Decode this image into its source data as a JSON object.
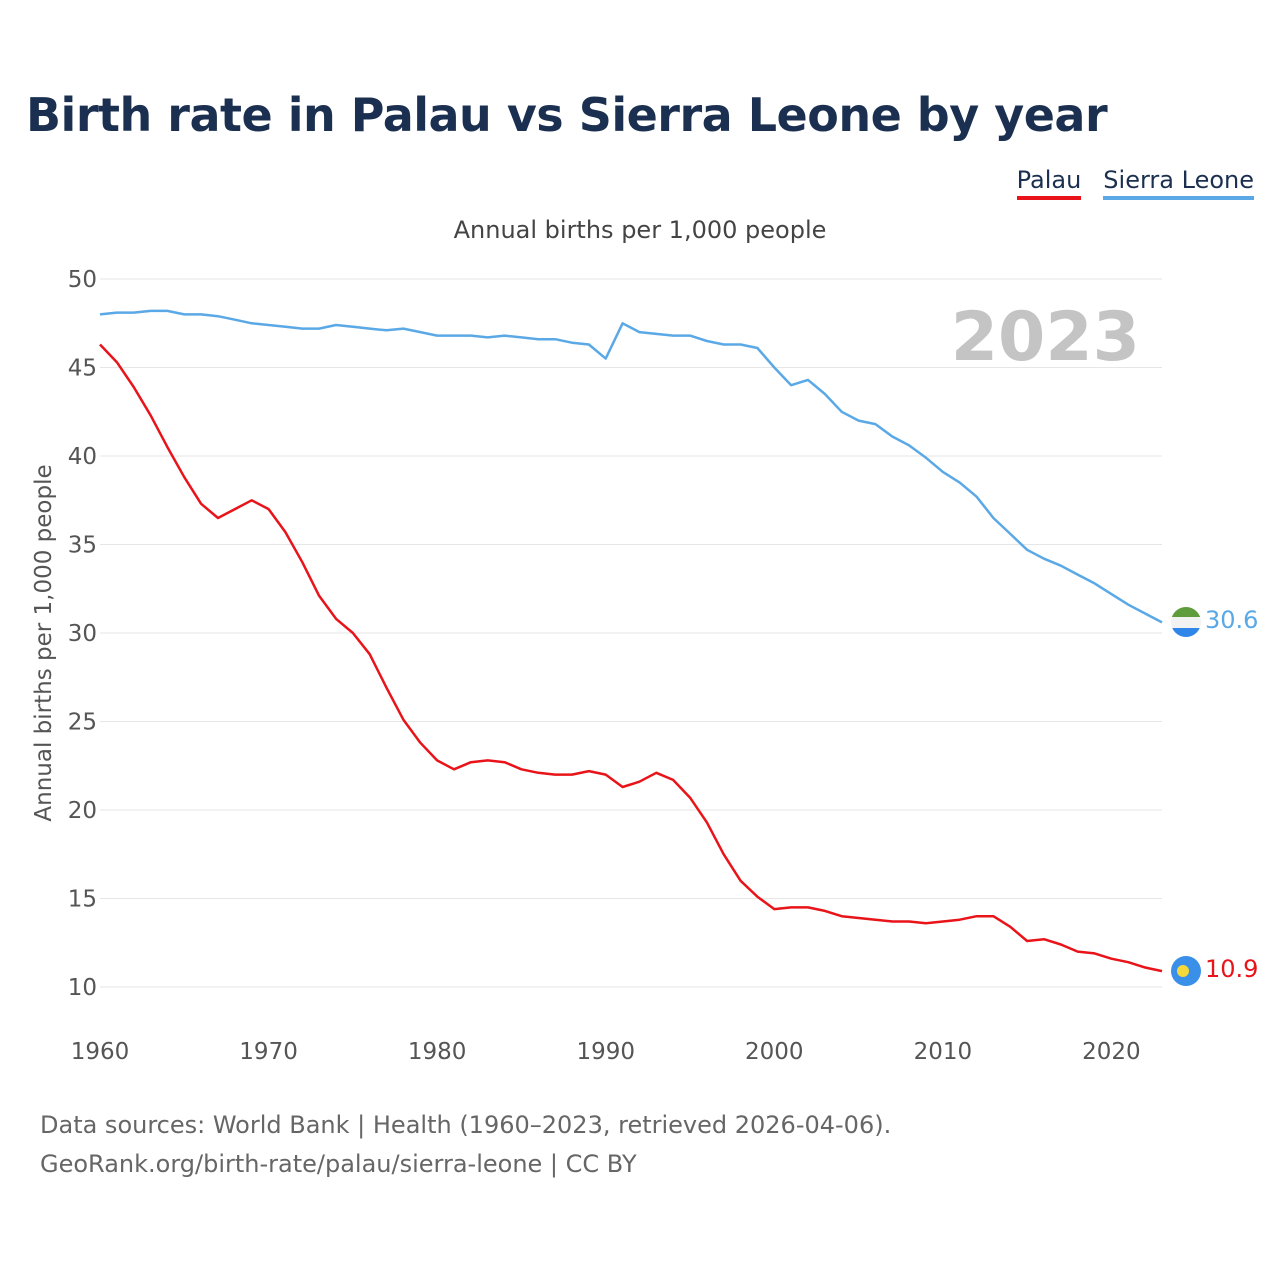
{
  "title": "Birth rate in Palau vs Sierra Leone by year",
  "legend": {
    "palau": "Palau",
    "sierra_leone": "Sierra Leone"
  },
  "subtitle": "Annual births per 1,000 people",
  "source": {
    "line1": "Data sources: World Bank | Health (1960–2023, retrieved 2026-04-06).",
    "line2": "GeoRank.org/birth-rate/palau/sierra-leone | CC BY"
  },
  "colors": {
    "palau": "#e8141a",
    "sierra_leone": "#5aa9e6",
    "grid": "#e6e6e6",
    "year": "#c4c4c4"
  },
  "chart_data": {
    "type": "line",
    "title": "Birth rate in Palau vs Sierra Leone by year",
    "subtitle": "Annual births per 1,000 people",
    "xlabel": "",
    "ylabel": "Annual births per 1,000 people",
    "xlim": [
      1960,
      2023
    ],
    "ylim": [
      10,
      50
    ],
    "yticks": [
      10,
      15,
      20,
      25,
      30,
      35,
      40,
      45,
      50
    ],
    "xticks": [
      1960,
      1970,
      1980,
      1990,
      2000,
      2010,
      2020
    ],
    "grid": true,
    "legend": "top-right",
    "year_watermark": "2023",
    "x": [
      1960,
      1961,
      1962,
      1963,
      1964,
      1965,
      1966,
      1967,
      1968,
      1969,
      1970,
      1971,
      1972,
      1973,
      1974,
      1975,
      1976,
      1977,
      1978,
      1979,
      1980,
      1981,
      1982,
      1983,
      1984,
      1985,
      1986,
      1987,
      1988,
      1989,
      1990,
      1991,
      1992,
      1993,
      1994,
      1995,
      1996,
      1997,
      1998,
      1999,
      2000,
      2001,
      2002,
      2003,
      2004,
      2005,
      2006,
      2007,
      2008,
      2009,
      2010,
      2011,
      2012,
      2013,
      2014,
      2015,
      2016,
      2017,
      2018,
      2019,
      2020,
      2021,
      2022,
      2023
    ],
    "series": [
      {
        "name": "Palau",
        "color": "#e8141a",
        "end_label": "10.9",
        "flag": "palau-flag-icon",
        "values": [
          46.3,
          45.3,
          43.9,
          42.3,
          40.5,
          38.8,
          37.3,
          36.5,
          37.0,
          37.5,
          37.0,
          35.7,
          34.0,
          32.1,
          30.8,
          30.0,
          28.8,
          26.9,
          25.1,
          23.8,
          22.8,
          22.3,
          22.7,
          22.8,
          22.7,
          22.3,
          22.1,
          22.0,
          22.0,
          22.2,
          22.0,
          21.3,
          21.6,
          22.1,
          21.7,
          20.7,
          19.3,
          17.5,
          16.0,
          15.1,
          14.4,
          14.5,
          14.5,
          14.3,
          14.0,
          13.9,
          13.8,
          13.7,
          13.7,
          13.6,
          13.7,
          13.8,
          14.0,
          14.0,
          13.4,
          12.6,
          12.7,
          12.4,
          12.0,
          11.9,
          11.6,
          11.4,
          11.1,
          10.9
        ]
      },
      {
        "name": "Sierra Leone",
        "color": "#5aa9e6",
        "end_label": "30.6",
        "flag": "sierra-leone-flag-icon",
        "values": [
          48.0,
          48.1,
          48.1,
          48.2,
          48.2,
          48.0,
          48.0,
          47.9,
          47.7,
          47.5,
          47.4,
          47.3,
          47.2,
          47.2,
          47.4,
          47.3,
          47.2,
          47.1,
          47.2,
          47.0,
          46.8,
          46.8,
          46.8,
          46.7,
          46.8,
          46.7,
          46.6,
          46.6,
          46.4,
          46.3,
          45.5,
          47.5,
          47.0,
          46.9,
          46.8,
          46.8,
          46.5,
          46.3,
          46.3,
          46.1,
          45.0,
          44.0,
          44.3,
          43.5,
          42.5,
          42.0,
          41.8,
          41.1,
          40.6,
          39.9,
          39.1,
          38.5,
          37.7,
          36.5,
          35.6,
          34.7,
          34.2,
          33.8,
          33.3,
          32.8,
          32.2,
          31.6,
          31.1,
          30.6
        ]
      }
    ]
  }
}
